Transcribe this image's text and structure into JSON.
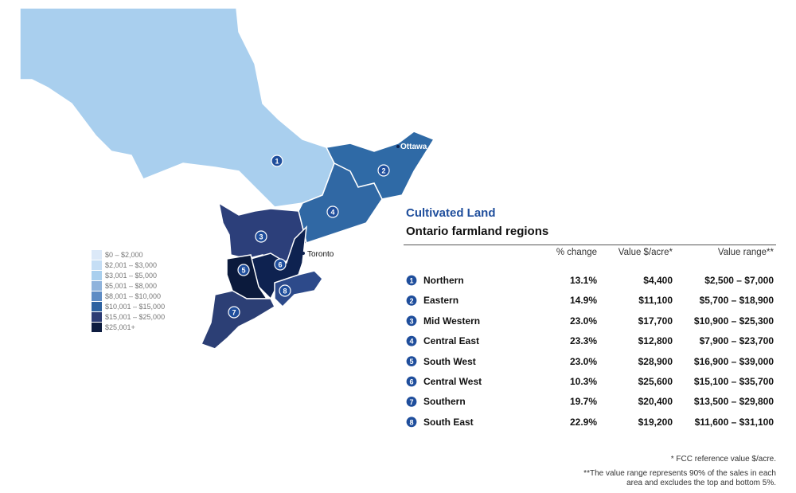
{
  "map": {
    "cities": [
      "Ottawa",
      "Toronto"
    ],
    "legend": [
      "$0 – $2,000",
      "$2,001 – $3,000",
      "$3,001 – $5,000",
      "$5,001 – $8,000",
      "$8,001 – $10,000",
      "$10,001 – $15,000",
      "$15,001 – $25,000",
      "$25,001+"
    ]
  },
  "table": {
    "title": "Cultivated Land",
    "subtitle": "Ontario farmland regions",
    "columns": [
      "% change",
      "Value $/acre*",
      "Value range**"
    ],
    "rows": [
      [
        "1",
        "Northern",
        "13.1%",
        "$4,400",
        "$2,500 – $7,000"
      ],
      [
        "2",
        "Eastern",
        "14.9%",
        "$11,100",
        "$5,700 – $18,900"
      ],
      [
        "3",
        "Mid Western",
        "23.0%",
        "$17,700",
        "$10,900 – $25,300"
      ],
      [
        "4",
        "Central East",
        "23.3%",
        "$12,800",
        "$7,900 – $23,700"
      ],
      [
        "5",
        "South West",
        "23.0%",
        "$28,900",
        "$16,900 – $39,000"
      ],
      [
        "6",
        "Central West",
        "10.3%",
        "$25,600",
        "$15,100 – $35,700"
      ],
      [
        "7",
        "Southern",
        "19.7%",
        "$20,400",
        "$13,500 – $29,800"
      ],
      [
        "8",
        "South East",
        "22.9%",
        "$19,200",
        "$11,600 – $31,100"
      ]
    ]
  },
  "footnotes": [
    "* FCC reference value $/acre.",
    "**The value range represents 90% of the sales in each area and excludes the top and bottom 5%."
  ]
}
